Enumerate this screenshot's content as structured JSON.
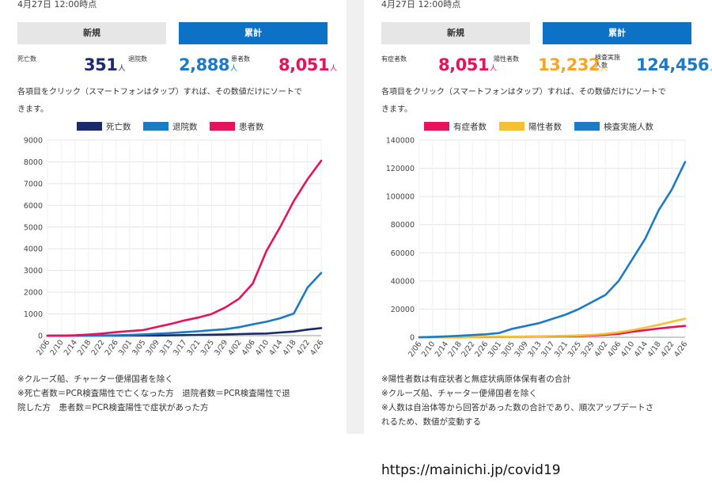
{
  "left": {
    "timestamp": "4月27日 12:00時点",
    "tabs": {
      "new": "新規",
      "cumulative": "累計"
    },
    "stats": [
      {
        "label": "死亡数",
        "value": "351",
        "unit": "人",
        "color": "#1a2a6c"
      },
      {
        "label": "退院数",
        "value": "2,888",
        "unit": "人",
        "color": "#1c7ac7"
      },
      {
        "label": "患者数",
        "value": "8,051",
        "unit": "人",
        "color": "#e8125c"
      }
    ],
    "note_line1": "各項目をクリック（スマートフォンはタップ）すれば、その数値だけにソートで",
    "note_line2": "きます。",
    "footnotes": [
      "※クルーズ船、チャーター便帰国者を除く",
      "※死亡者数＝PCR検査陽性で亡くなった方　退院者数＝PCR検査陽性で退",
      "院した方　患者数＝PCR検査陽性で症状があった方"
    ]
  },
  "right": {
    "timestamp": "4月27日 12:00時点",
    "tabs": {
      "new": "新規",
      "cumulative": "累計"
    },
    "stats": [
      {
        "label": "有症者数",
        "value": "8,051",
        "unit": "人",
        "color": "#e8125c"
      },
      {
        "label": "陽性者数",
        "value": "13,232",
        "unit": "人",
        "color": "#f5a623"
      },
      {
        "label": "検査実施人数",
        "value": "124,456",
        "unit": "人",
        "color": "#1c7ac7"
      }
    ],
    "note_line1": "各項目をクリック（スマートフォンはタップ）すれば、その数値だけにソートで",
    "note_line2": "きます。",
    "footnotes": [
      "※陽性者数は有症状者と無症状病原体保有者の合計",
      "※クルーズ船、チャーター便帰国者を除く",
      "※人数は自治体等から回答があった数の合計であり、順次アップデートさ",
      "れるため、数値が変動する"
    ]
  },
  "source_url": "https://mainichi.jp/covid19",
  "chart_data": [
    {
      "type": "line",
      "x": [
        "2/06",
        "2/10",
        "2/14",
        "2/18",
        "2/22",
        "2/26",
        "3/01",
        "3/05",
        "3/09",
        "3/13",
        "3/17",
        "3/21",
        "3/25",
        "3/29",
        "4/02",
        "4/06",
        "4/10",
        "4/14",
        "4/18",
        "4/22",
        "4/26"
      ],
      "ylim": [
        0,
        9000
      ],
      "yticks": [
        0,
        1000,
        2000,
        3000,
        4000,
        5000,
        6000,
        7000,
        8000,
        9000
      ],
      "grid": true,
      "legend_position": "top",
      "series": [
        {
          "name": "死亡数",
          "color": "#1a2a6c",
          "values": [
            0,
            0,
            0,
            1,
            1,
            4,
            6,
            6,
            9,
            15,
            24,
            35,
            45,
            57,
            72,
            86,
            99,
            144,
            188,
            281,
            351
          ]
        },
        {
          "name": "退院数",
          "color": "#1c7ac7",
          "values": [
            0,
            0,
            1,
            5,
            12,
            20,
            32,
            60,
            90,
            120,
            160,
            200,
            250,
            300,
            390,
            520,
            640,
            800,
            1020,
            2210,
            2888
          ]
        },
        {
          "name": "患者数",
          "color": "#e8125c",
          "values": [
            0,
            5,
            20,
            50,
            100,
            160,
            210,
            260,
            400,
            540,
            700,
            830,
            1000,
            1300,
            1700,
            2400,
            3900,
            5000,
            6200,
            7200,
            8051
          ]
        }
      ]
    },
    {
      "type": "line",
      "x": [
        "2/06",
        "2/10",
        "2/14",
        "2/18",
        "2/22",
        "2/26",
        "3/01",
        "3/05",
        "3/09",
        "3/13",
        "3/17",
        "3/21",
        "3/25",
        "3/29",
        "4/02",
        "4/06",
        "4/10",
        "4/14",
        "4/18",
        "4/22",
        "4/26"
      ],
      "ylim": [
        0,
        140000
      ],
      "yticks": [
        0,
        20000,
        40000,
        60000,
        80000,
        100000,
        120000,
        140000
      ],
      "grid": true,
      "legend_position": "top",
      "series": [
        {
          "name": "有症者数",
          "color": "#e8125c",
          "values": [
            0,
            5,
            20,
            50,
            100,
            160,
            210,
            260,
            400,
            540,
            700,
            830,
            1000,
            1300,
            1700,
            2400,
            3900,
            5000,
            6200,
            7200,
            8051
          ]
        },
        {
          "name": "陽性者数",
          "color": "#f5c132",
          "values": [
            0,
            10,
            40,
            100,
            180,
            260,
            300,
            380,
            550,
            700,
            870,
            1000,
            1300,
            1700,
            2400,
            3500,
            5000,
            6800,
            8800,
            11000,
            13232
          ]
        },
        {
          "name": "検査実施人数",
          "color": "#1c7ac7",
          "values": [
            0,
            200,
            600,
            1000,
            1600,
            2100,
            3000,
            6000,
            8000,
            10000,
            13000,
            16000,
            20000,
            25000,
            30000,
            40000,
            55000,
            70000,
            90000,
            105000,
            124456
          ]
        }
      ]
    }
  ]
}
